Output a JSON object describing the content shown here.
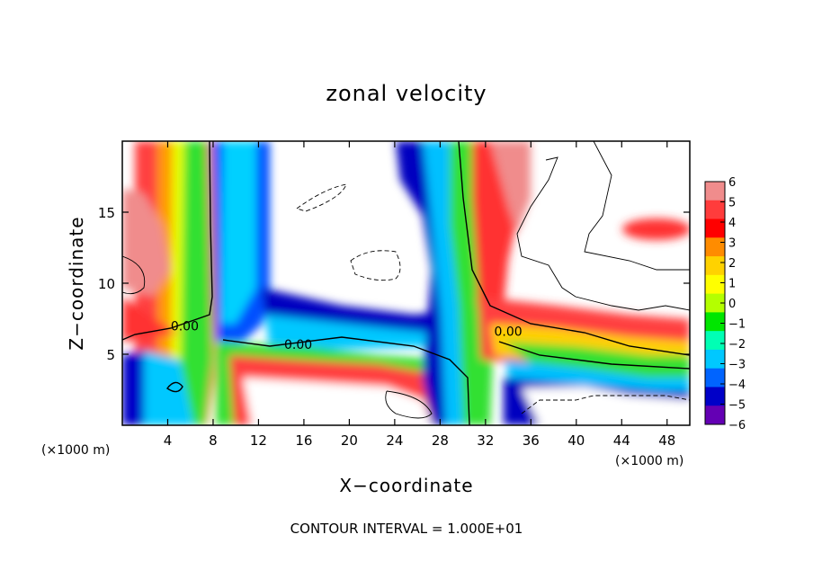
{
  "chart_data": {
    "type": "heatmap",
    "title": "zonal velocity",
    "xlabel": "X−coordinate",
    "ylabel": "Z−coordinate",
    "x_unit_left": "(×1000 m)",
    "x_unit_right": "(×1000 m)",
    "xlim": [
      0,
      50
    ],
    "ylim": [
      0,
      20
    ],
    "x_ticks": [
      4,
      8,
      12,
      16,
      20,
      24,
      28,
      32,
      36,
      40,
      44,
      48
    ],
    "y_ticks": [
      5,
      10,
      15
    ],
    "colorbar": {
      "ticks": [
        6,
        5,
        4,
        3,
        2,
        1,
        0,
        -1,
        -2,
        -3,
        -4,
        -5,
        -6
      ],
      "tick_labels": [
        "6",
        "5",
        "4",
        "3",
        "2",
        "1",
        "0",
        "−1",
        "−2",
        "−3",
        "−4",
        "−5",
        "−6"
      ],
      "colors_top_to_bottom": [
        "#f08c8c",
        "#ff3c3c",
        "#ff0000",
        "#ff8c00",
        "#ffd200",
        "#ffff00",
        "#b4ff00",
        "#00e600",
        "#00ffb4",
        "#00c8ff",
        "#0064ff",
        "#0000c8",
        "#6400b4"
      ]
    },
    "contour_labels": [
      {
        "text": "0.00",
        "x": 5.5,
        "z": 7.0
      },
      {
        "text": "0.00",
        "x": 15.5,
        "z": 5.7
      },
      {
        "text": "0.00",
        "x": 34.0,
        "z": 6.6
      }
    ],
    "footer": "CONTOUR INTERVAL = 1.000E+01",
    "grid": false
  }
}
